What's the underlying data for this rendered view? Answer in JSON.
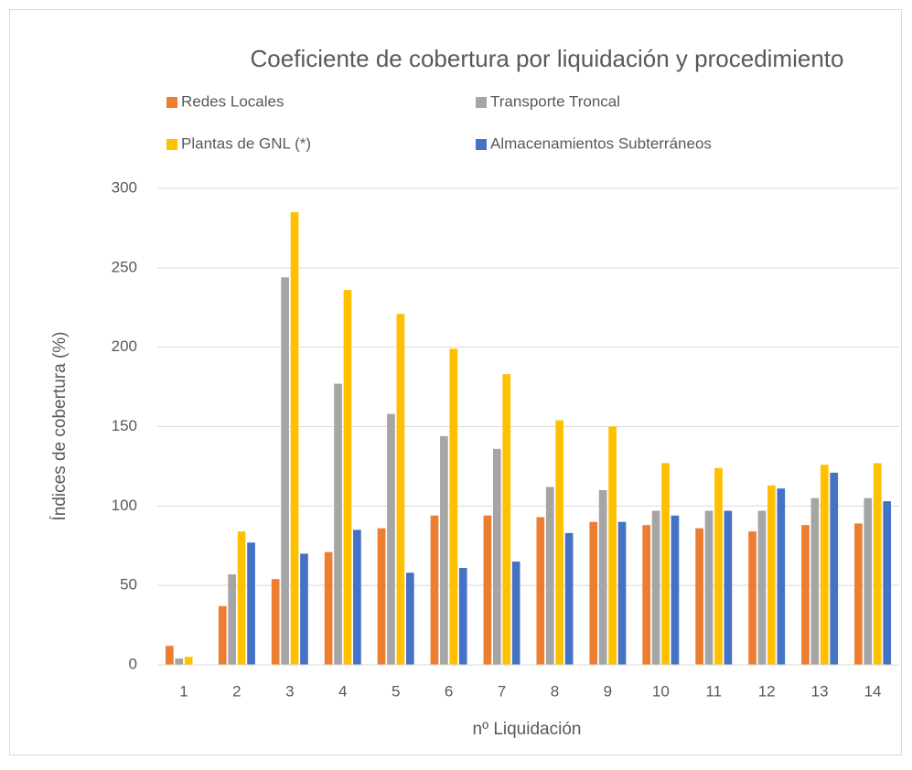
{
  "chart_data": {
    "type": "bar",
    "title": "Coeficiente de cobertura por liquidación y procedimiento",
    "x_label": "nº Liquidación",
    "y_label": "Índices de cobertura (%)",
    "categories": [
      "1",
      "2",
      "3",
      "4",
      "5",
      "6",
      "7",
      "8",
      "9",
      "10",
      "11",
      "12",
      "13",
      "14"
    ],
    "series": [
      {
        "name": "Redes Locales",
        "color": "#ed7d31",
        "values": [
          12,
          37,
          54,
          71,
          86,
          94,
          94,
          93,
          90,
          88,
          86,
          84,
          88,
          89
        ]
      },
      {
        "name": "Transporte Troncal",
        "color": "#a5a5a5",
        "values": [
          4,
          57,
          244,
          177,
          158,
          144,
          136,
          112,
          110,
          97,
          97,
          97,
          105,
          105
        ]
      },
      {
        "name": "Plantas de GNL (*)",
        "color": "#ffc000",
        "values": [
          5,
          84,
          285,
          236,
          221,
          199,
          183,
          154,
          150,
          127,
          124,
          113,
          126,
          127
        ]
      },
      {
        "name": "Almacenamientos Subterráneos",
        "color": "#4472c4",
        "values": [
          null,
          77,
          70,
          85,
          58,
          61,
          65,
          83,
          90,
          94,
          97,
          111,
          121,
          103
        ]
      }
    ],
    "ylim": [
      0,
      300
    ],
    "yticks": [
      0,
      50,
      100,
      150,
      200,
      250,
      300
    ],
    "grid": true,
    "legend": "top"
  }
}
